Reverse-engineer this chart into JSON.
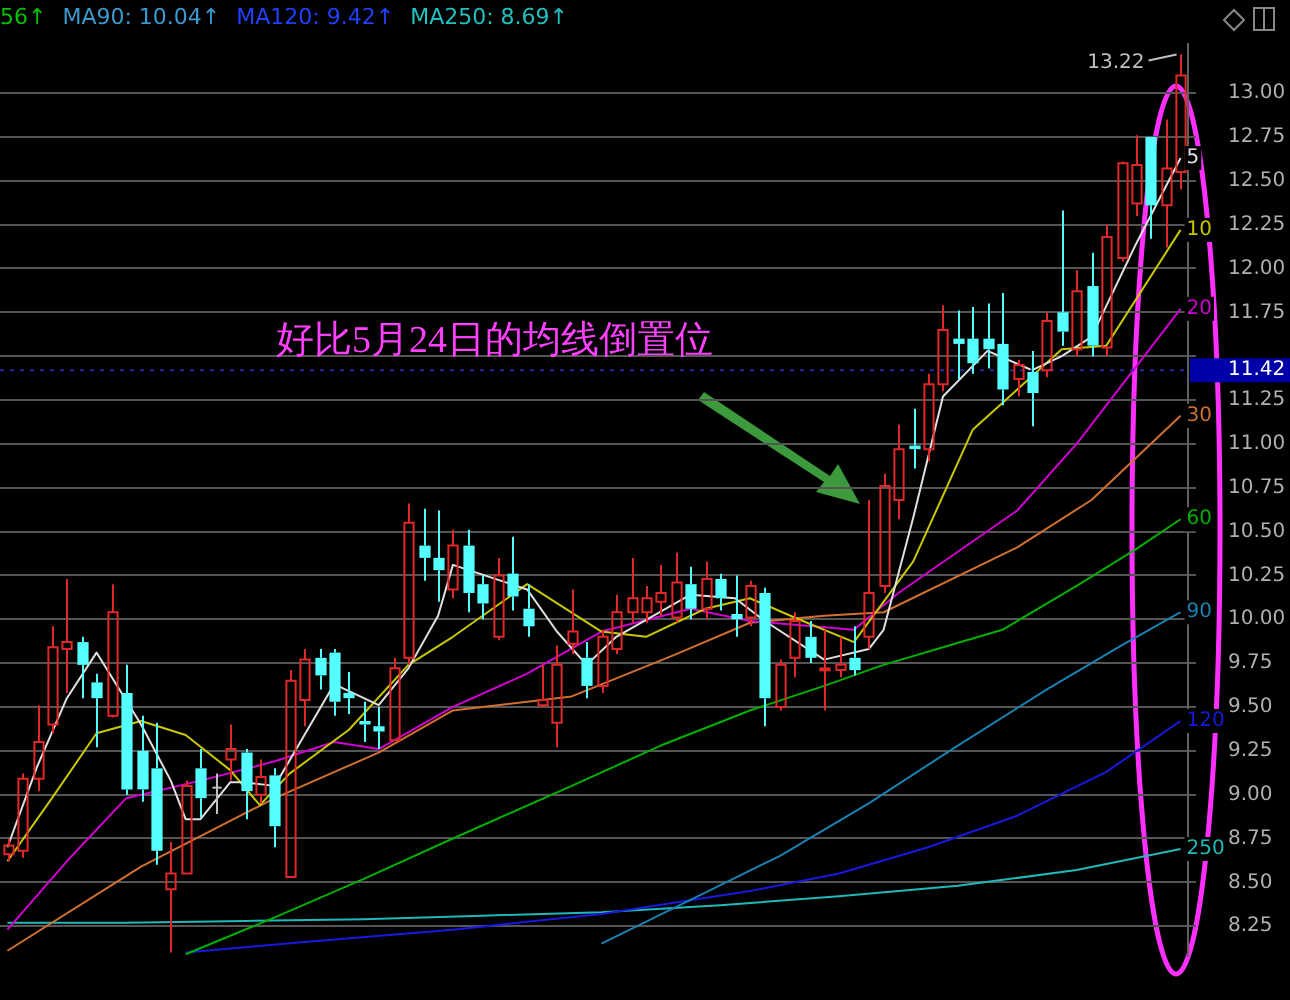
{
  "chart_data": {
    "type": "candlestick",
    "annotations": [
      "56↑",
      "MA90: 10.04↑",
      "MA120: 9.42↑",
      "MA250: 8.69↑",
      "好比5月24日的均线倒置位",
      "13.22"
    ],
    "categories": [
      null,
      null,
      null,
      null,
      null,
      null,
      null,
      null,
      null,
      null,
      null,
      null,
      null,
      null,
      null,
      null,
      null,
      null,
      null,
      null,
      null,
      null,
      null,
      null,
      null,
      null,
      null,
      null,
      null,
      null,
      null,
      null,
      null,
      null,
      null,
      null,
      null,
      null,
      null,
      null,
      null,
      null,
      null,
      null,
      null,
      null,
      null,
      null,
      null,
      null,
      null,
      null,
      null,
      null,
      null,
      null,
      null,
      null,
      null,
      null,
      null,
      null,
      null,
      null,
      null,
      null,
      null,
      null,
      null,
      null,
      null,
      null,
      null,
      null,
      null,
      null,
      null,
      null,
      null,
      null
    ],
    "ohlc": [
      [
        8.66,
        8.75,
        8.62,
        8.71
      ],
      [
        8.68,
        9.12,
        8.64,
        9.09
      ],
      [
        9.09,
        9.51,
        9.02,
        9.3
      ],
      [
        9.4,
        9.96,
        9.35,
        9.84
      ],
      [
        9.83,
        10.23,
        9.58,
        9.87
      ],
      [
        9.87,
        9.9,
        9.55,
        9.74
      ],
      [
        9.64,
        9.69,
        9.27,
        9.55
      ],
      [
        9.45,
        10.2,
        9.44,
        10.04
      ],
      [
        9.58,
        9.74,
        9.0,
        9.03
      ],
      [
        9.25,
        9.45,
        8.96,
        9.03
      ],
      [
        9.15,
        9.41,
        8.6,
        8.68
      ],
      [
        8.46,
        8.73,
        8.1,
        8.55
      ],
      [
        8.55,
        9.08,
        8.55,
        9.05
      ],
      [
        9.15,
        9.26,
        8.87,
        8.98
      ],
      [
        9.04,
        9.12,
        8.89,
        9.04
      ],
      [
        9.2,
        9.4,
        9.08,
        9.26
      ],
      [
        9.24,
        9.26,
        8.86,
        9.02
      ],
      [
        9.0,
        9.2,
        8.95,
        9.1
      ],
      [
        9.11,
        9.15,
        8.7,
        8.82
      ],
      [
        8.53,
        9.71,
        8.53,
        9.65
      ],
      [
        9.54,
        9.83,
        9.39,
        9.77
      ],
      [
        9.78,
        9.83,
        9.6,
        9.68
      ],
      [
        9.81,
        9.83,
        9.45,
        9.53
      ],
      [
        9.58,
        9.7,
        9.46,
        9.55
      ],
      [
        9.42,
        9.53,
        9.3,
        9.4
      ],
      [
        9.39,
        9.5,
        9.26,
        9.36
      ],
      [
        9.31,
        9.78,
        9.31,
        9.72
      ],
      [
        9.78,
        10.66,
        9.74,
        10.55
      ],
      [
        10.42,
        10.63,
        10.22,
        10.35
      ],
      [
        10.35,
        10.62,
        10.1,
        10.28
      ],
      [
        10.17,
        10.51,
        10.12,
        10.42
      ],
      [
        10.42,
        10.51,
        10.04,
        10.15
      ],
      [
        10.2,
        10.25,
        10.0,
        10.09
      ],
      [
        9.9,
        10.35,
        9.88,
        10.25
      ],
      [
        10.26,
        10.47,
        10.05,
        10.13
      ],
      [
        10.06,
        10.2,
        9.9,
        9.96
      ],
      [
        9.51,
        9.74,
        9.5,
        9.54
      ],
      [
        9.41,
        9.85,
        9.27,
        9.74
      ],
      [
        9.86,
        10.17,
        9.8,
        9.93
      ],
      [
        9.78,
        9.87,
        9.55,
        9.62
      ],
      [
        9.62,
        9.94,
        9.58,
        9.9
      ],
      [
        9.83,
        10.14,
        9.8,
        10.04
      ],
      [
        10.04,
        10.35,
        9.98,
        10.12
      ],
      [
        10.04,
        10.19,
        9.98,
        10.12
      ],
      [
        10.1,
        10.31,
        10.02,
        10.15
      ],
      [
        10.01,
        10.38,
        9.98,
        10.21
      ],
      [
        10.2,
        10.3,
        10.0,
        10.06
      ],
      [
        10.06,
        10.33,
        10.0,
        10.23
      ],
      [
        10.23,
        10.26,
        10.05,
        10.12
      ],
      [
        10.03,
        10.25,
        9.9,
        10.0
      ],
      [
        10.01,
        10.22,
        9.96,
        10.19
      ],
      [
        10.15,
        10.18,
        9.39,
        9.55
      ],
      [
        9.5,
        9.77,
        9.48,
        9.74
      ],
      [
        9.78,
        10.04,
        9.67,
        9.99
      ],
      [
        9.9,
        9.99,
        9.75,
        9.78
      ],
      [
        9.71,
        9.94,
        9.48,
        9.72
      ],
      [
        9.71,
        9.9,
        9.67,
        9.74
      ],
      [
        9.78,
        9.96,
        9.68,
        9.71
      ],
      [
        9.9,
        10.68,
        9.83,
        10.15
      ],
      [
        10.19,
        10.83,
        10.15,
        10.76
      ],
      [
        10.68,
        11.11,
        10.57,
        10.97
      ],
      [
        10.99,
        11.2,
        10.86,
        10.97
      ],
      [
        10.97,
        11.4,
        10.9,
        11.34
      ],
      [
        11.34,
        11.79,
        11.3,
        11.65
      ],
      [
        11.6,
        11.76,
        11.37,
        11.57
      ],
      [
        11.6,
        11.78,
        11.4,
        11.46
      ],
      [
        11.6,
        11.8,
        11.43,
        11.54
      ],
      [
        11.57,
        11.86,
        11.22,
        11.31
      ],
      [
        11.37,
        11.48,
        11.27,
        11.45
      ],
      [
        11.41,
        11.53,
        11.1,
        11.29
      ],
      [
        11.42,
        11.75,
        11.38,
        11.7
      ],
      [
        11.75,
        12.33,
        11.56,
        11.64
      ],
      [
        11.54,
        11.99,
        11.5,
        11.87
      ],
      [
        11.9,
        12.09,
        11.5,
        11.56
      ],
      [
        11.55,
        12.25,
        11.5,
        12.18
      ],
      [
        12.06,
        12.61,
        12.04,
        12.6
      ],
      [
        12.37,
        12.76,
        12.3,
        12.59
      ],
      [
        12.75,
        12.75,
        12.17,
        12.36
      ],
      [
        12.36,
        12.85,
        12.12,
        12.57
      ],
      [
        12.55,
        13.22,
        12.45,
        13.1
      ]
    ],
    "series": [
      {
        "name": "5",
        "type": "line",
        "color": "#e0e0e0",
        "values": [
          8.7,
          null,
          9.16,
          null,
          9.55,
          null,
          9.81,
          null,
          null,
          9.4,
          null,
          9.08,
          8.86,
          8.86,
          null,
          9.07,
          9.07,
          null,
          9.05,
          null,
          9.34,
          null,
          9.63,
          null,
          null,
          9.51,
          null,
          9.72,
          null,
          10.02,
          10.31,
          null,
          null,
          null,
          null,
          10.17,
          null,
          9.93,
          null,
          9.74,
          null,
          9.9,
          null,
          null,
          null,
          null,
          10.14,
          null,
          null,
          10.12,
          null,
          9.99,
          null,
          null,
          null,
          9.77,
          null,
          null,
          9.83,
          9.94,
          null,
          10.58,
          null,
          11.27,
          null,
          null,
          11.53,
          null,
          null,
          11.42,
          null,
          11.5,
          null,
          11.61,
          null,
          null,
          12.14,
          null,
          null,
          12.63
        ]
      },
      {
        "name": "10",
        "type": "line",
        "color": "#c8c800",
        "values": [
          8.62,
          null,
          null,
          8.98,
          null,
          null,
          9.35,
          null,
          null,
          9.42,
          null,
          null,
          9.34,
          null,
          null,
          9.14,
          null,
          8.94,
          null,
          9.12,
          null,
          null,
          null,
          9.37,
          null,
          null,
          null,
          9.74,
          null,
          null,
          9.9,
          null,
          null,
          null,
          null,
          10.2,
          null,
          null,
          null,
          null,
          9.93,
          null,
          null,
          9.9,
          null,
          null,
          null,
          10.06,
          null,
          null,
          10.12,
          null,
          null,
          10.01,
          null,
          null,
          null,
          9.87,
          null,
          null,
          null,
          10.33,
          null,
          null,
          null,
          11.08,
          null,
          null,
          null,
          null,
          null,
          11.54,
          null,
          null,
          11.56,
          null,
          null,
          null,
          null,
          12.22
        ]
      },
      {
        "name": "20",
        "type": "line",
        "color": "#d000d0",
        "values": [
          8.23,
          null,
          null,
          null,
          8.62,
          null,
          null,
          null,
          8.98,
          null,
          null,
          null,
          null,
          9.08,
          null,
          null,
          null,
          null,
          9.19,
          null,
          null,
          null,
          9.3,
          null,
          null,
          9.26,
          null,
          null,
          null,
          null,
          9.5,
          null,
          null,
          null,
          null,
          9.69,
          null,
          null,
          null,
          null,
          9.93,
          null,
          null,
          null,
          null,
          null,
          10.06,
          null,
          null,
          null,
          9.99,
          null,
          null,
          null,
          null,
          null,
          null,
          9.94,
          null,
          null,
          10.15,
          null,
          null,
          null,
          null,
          null,
          null,
          null,
          10.62,
          null,
          null,
          null,
          11.0,
          null,
          null,
          null,
          null,
          null,
          null,
          11.77
        ]
      },
      {
        "name": "30",
        "type": "line",
        "color": "#d07030",
        "values": [
          8.11,
          null,
          null,
          null,
          null,
          null,
          null,
          null,
          null,
          8.59,
          null,
          null,
          null,
          null,
          null,
          null,
          null,
          null,
          8.98,
          null,
          null,
          null,
          null,
          null,
          null,
          9.24,
          null,
          null,
          null,
          null,
          9.48,
          null,
          null,
          null,
          null,
          null,
          null,
          null,
          9.56,
          null,
          null,
          null,
          null,
          null,
          null,
          9.8,
          null,
          null,
          null,
          null,
          9.98,
          null,
          null,
          null,
          null,
          10.02,
          null,
          null,
          null,
          10.04,
          null,
          null,
          null,
          null,
          null,
          null,
          null,
          null,
          10.41,
          null,
          null,
          null,
          null,
          10.68,
          null,
          null,
          null,
          null,
          null,
          11.16
        ]
      },
      {
        "name": "60",
        "type": "line",
        "color": "#00b000",
        "values": [
          null,
          null,
          null,
          null,
          null,
          null,
          null,
          null,
          null,
          null,
          null,
          null,
          8.09,
          null,
          null,
          null,
          null,
          null,
          8.3,
          null,
          null,
          null,
          null,
          null,
          8.52,
          null,
          null,
          null,
          null,
          null,
          8.75,
          null,
          null,
          null,
          null,
          null,
          null,
          null,
          9.05,
          null,
          null,
          null,
          null,
          null,
          9.28,
          null,
          null,
          null,
          null,
          null,
          9.48,
          null,
          null,
          null,
          null,
          9.62,
          null,
          null,
          null,
          9.74,
          null,
          null,
          null,
          9.84,
          null,
          null,
          null,
          9.94,
          null,
          null,
          null,
          null,
          10.19,
          null,
          null,
          null,
          10.4,
          null,
          null,
          10.57
        ]
      },
      {
        "name": "90",
        "type": "line",
        "color": "#1a80b0",
        "values": [
          null,
          null,
          null,
          null,
          null,
          null,
          null,
          null,
          null,
          null,
          null,
          null,
          null,
          null,
          null,
          null,
          null,
          null,
          null,
          null,
          null,
          null,
          null,
          null,
          null,
          null,
          null,
          null,
          null,
          null,
          null,
          null,
          null,
          null,
          null,
          null,
          null,
          null,
          null,
          null,
          8.15,
          null,
          null,
          null,
          null,
          null,
          8.4,
          null,
          null,
          null,
          null,
          null,
          8.65,
          null,
          null,
          null,
          null,
          null,
          8.95,
          null,
          null,
          null,
          null,
          null,
          9.28,
          null,
          null,
          null,
          null,
          null,
          9.6,
          null,
          null,
          null,
          null,
          9.85,
          null,
          null,
          null,
          10.04
        ]
      },
      {
        "name": "120",
        "type": "line",
        "color": "#1818e0",
        "values": [
          null,
          null,
          null,
          null,
          null,
          null,
          null,
          null,
          null,
          null,
          null,
          null,
          8.1,
          null,
          null,
          null,
          null,
          null,
          null,
          null,
          8.16,
          null,
          null,
          null,
          null,
          null,
          null,
          null,
          null,
          null,
          8.23,
          null,
          null,
          null,
          null,
          null,
          null,
          null,
          null,
          null,
          8.32,
          null,
          null,
          null,
          null,
          null,
          null,
          null,
          null,
          null,
          8.45,
          null,
          null,
          null,
          null,
          null,
          8.55,
          null,
          null,
          null,
          null,
          null,
          8.7,
          null,
          null,
          null,
          null,
          null,
          8.88,
          null,
          null,
          null,
          null,
          null,
          9.13,
          null,
          null,
          null,
          null,
          9.42
        ]
      },
      {
        "name": "250",
        "type": "line",
        "color": "#20b8b8",
        "values": [
          8.27,
          null,
          null,
          null,
          null,
          null,
          null,
          null,
          8.27,
          null,
          null,
          null,
          null,
          null,
          null,
          null,
          8.28,
          null,
          null,
          null,
          null,
          null,
          null,
          null,
          8.29,
          null,
          null,
          null,
          null,
          null,
          null,
          null,
          8.31,
          null,
          null,
          null,
          null,
          null,
          null,
          null,
          8.33,
          null,
          null,
          null,
          null,
          null,
          null,
          null,
          8.37,
          null,
          null,
          null,
          null,
          null,
          null,
          null,
          8.42,
          null,
          null,
          null,
          null,
          null,
          null,
          null,
          8.48,
          null,
          null,
          null,
          null,
          null,
          null,
          null,
          8.57,
          null,
          null,
          null,
          null,
          null,
          null,
          8.69
        ]
      }
    ],
    "ylim": [
      8.08,
      13.28
    ],
    "yticks": [
      8.25,
      {
        "value": 8.5,
        "label": "8.50"
      },
      8.75,
      {
        "value": 9,
        "label": "9.00"
      },
      9.25,
      {
        "value": 9.5,
        "label": "9.50"
      },
      9.75,
      {
        "value": 10,
        "label": "10.00"
      },
      10.25,
      {
        "value": 10.5,
        "label": "10.50"
      },
      10.75,
      {
        "value": 11,
        "label": "11.00"
      },
      11.25,
      {
        "value": 11.5,
        "label": null
      },
      11.75,
      {
        "value": 12,
        "label": "12.00"
      },
      12.25,
      {
        "value": 12.5,
        "label": "12.50"
      },
      12.75,
      {
        "value": 13,
        "label": "13.00"
      }
    ],
    "ref_lines": [
      {
        "axis": "y",
        "value": 11.42,
        "label": "11.42"
      }
    ],
    "grid": "y",
    "legend": false,
    "marker": "none",
    "line_style": "solid"
  }
}
